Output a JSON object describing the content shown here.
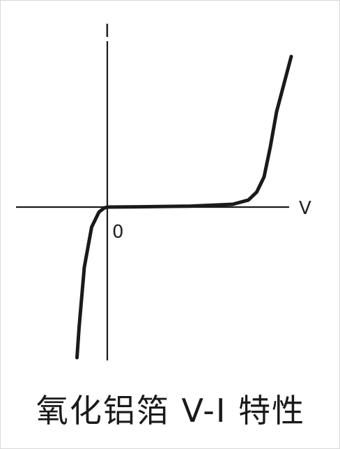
{
  "chart_data": {
    "type": "line",
    "title": "氧化铝箔 V-I 特性",
    "xlabel": "V",
    "ylabel": "I",
    "origin_label": "0",
    "xlim": [
      -1.0,
      2.0
    ],
    "ylim": [
      -1.5,
      1.75
    ],
    "grid": false,
    "legend": "none",
    "line_color": "#1a1a1a",
    "axis_color": "#1a1a1a",
    "series": [
      {
        "x": [
          -0.29,
          -0.27,
          -0.22,
          -0.15,
          -0.08,
          -0.03,
          0.0,
          0.3,
          0.8,
          1.2,
          1.35,
          1.43,
          1.5,
          1.56,
          1.62,
          1.76
        ],
        "y": [
          -1.5,
          -1.2,
          -0.6,
          -0.2,
          -0.05,
          -0.01,
          0.0,
          0.003,
          0.01,
          0.028,
          0.07,
          0.15,
          0.3,
          0.6,
          0.95,
          1.5
        ]
      }
    ]
  }
}
